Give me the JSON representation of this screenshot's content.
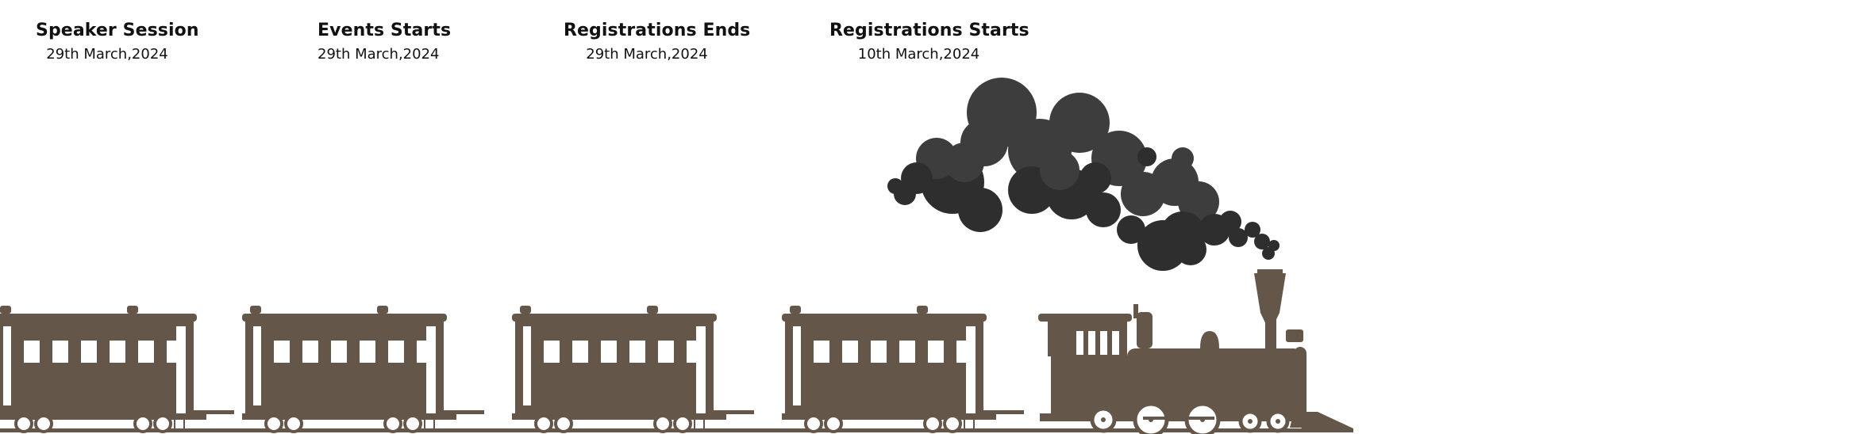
{
  "milestones": [
    {
      "title": "Speaker Session",
      "date": "29th March,2024"
    },
    {
      "title": "Events Starts",
      "date": "29th March,2024"
    },
    {
      "title": "Registrations Ends",
      "date": "29th March,2024"
    },
    {
      "title": "Registrations Starts",
      "date": "10th March,2024"
    }
  ],
  "colors": {
    "train": "#64574a",
    "smoke_dark": "#2e2e2e",
    "smoke_mid": "#3d3d3d",
    "window": "#ffffff",
    "text": "#111111"
  }
}
